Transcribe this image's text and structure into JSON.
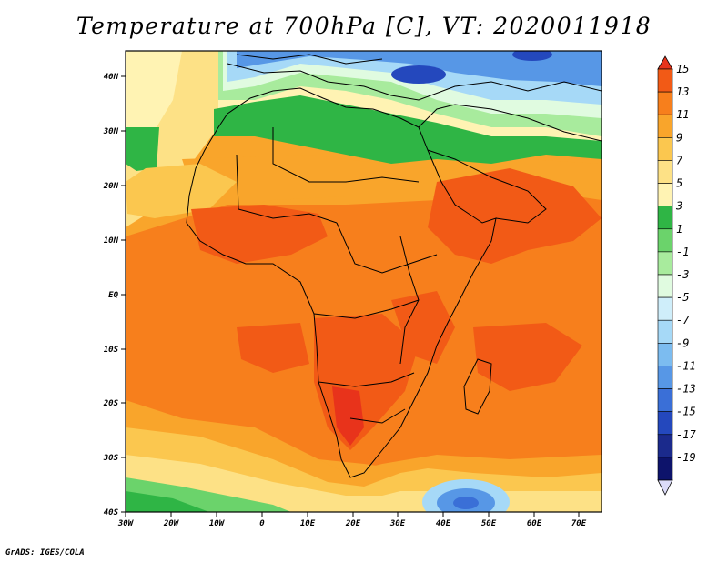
{
  "title": "Temperature at 700hPa [C], VT: 2020011918",
  "credit": "GrADS: IGES/COLA",
  "axes": {
    "x_ticks": [
      "30W",
      "20W",
      "10W",
      "0",
      "10E",
      "20E",
      "30E",
      "40E",
      "50E",
      "60E",
      "70E"
    ],
    "y_ticks": [
      "40N",
      "30N",
      "20N",
      "10N",
      "EQ",
      "10S",
      "20S",
      "30S",
      "40S"
    ]
  },
  "colorbar": {
    "labels": [
      "15",
      "13",
      "11",
      "9",
      "7",
      "5",
      "3",
      "1",
      "-1",
      "-3",
      "-5",
      "-7",
      "-9",
      "-11",
      "-13",
      "-15",
      "-17",
      "-19"
    ],
    "colors": [
      "#e8331b",
      "#f25a16",
      "#f77f1c",
      "#f9a52b",
      "#fbc74f",
      "#fde186",
      "#fff3b3",
      "#2fb545",
      "#6bd36b",
      "#a8eb9d",
      "#e0fbe0",
      "#cfeefa",
      "#a6d9f7",
      "#7cbcf0",
      "#5797e6",
      "#3a6fd7",
      "#2448bd",
      "#1b2a8c",
      "#0d136b",
      "#dcdcf8"
    ]
  },
  "map": {
    "colors": {
      "very_warm": "#e8331b",
      "warm_hot": "#f25a16",
      "warm": "#f77f1c",
      "mild": "#f9a52b",
      "light_warm": "#fbc74f",
      "pale_yellow": "#fde186",
      "cream": "#fff3b3",
      "green_dark": "#2fb545",
      "green": "#6bd36b",
      "green_light": "#a8eb9d",
      "cyan_pale": "#e0fbe0",
      "blue_light": "#a6d9f7",
      "blue": "#5797e6",
      "blue_dark": "#2448bd"
    }
  }
}
